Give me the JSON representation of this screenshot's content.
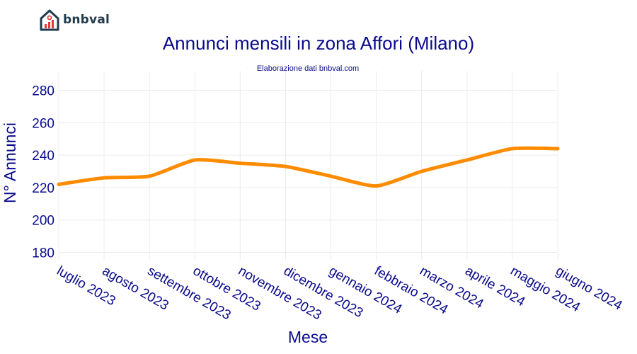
{
  "brand": {
    "name": "bnbval"
  },
  "chart_data": {
    "type": "line",
    "title": "Annunci mensili in zona Affori (Milano)",
    "subtitle": "Elaborazione dati bnbval.com",
    "xlabel": "Mese",
    "ylabel": "N° Annunci",
    "categories": [
      "luglio 2023",
      "agosto 2023",
      "settembre 2023",
      "ottobre 2023",
      "novembre 2023",
      "dicembre 2023",
      "gennaio 2024",
      "febbraio 2024",
      "marzo 2024",
      "aprile 2024",
      "maggio 2024",
      "giugno 2024"
    ],
    "series": [
      {
        "name": "Annunci",
        "values": [
          222,
          226,
          227,
          237,
          235,
          233,
          227,
          221,
          230,
          237,
          244,
          244
        ],
        "color": "#ff8c00"
      }
    ],
    "ylim": [
      175,
      292
    ],
    "yticks": [
      180,
      200,
      220,
      240,
      260,
      280
    ],
    "grid": true
  }
}
